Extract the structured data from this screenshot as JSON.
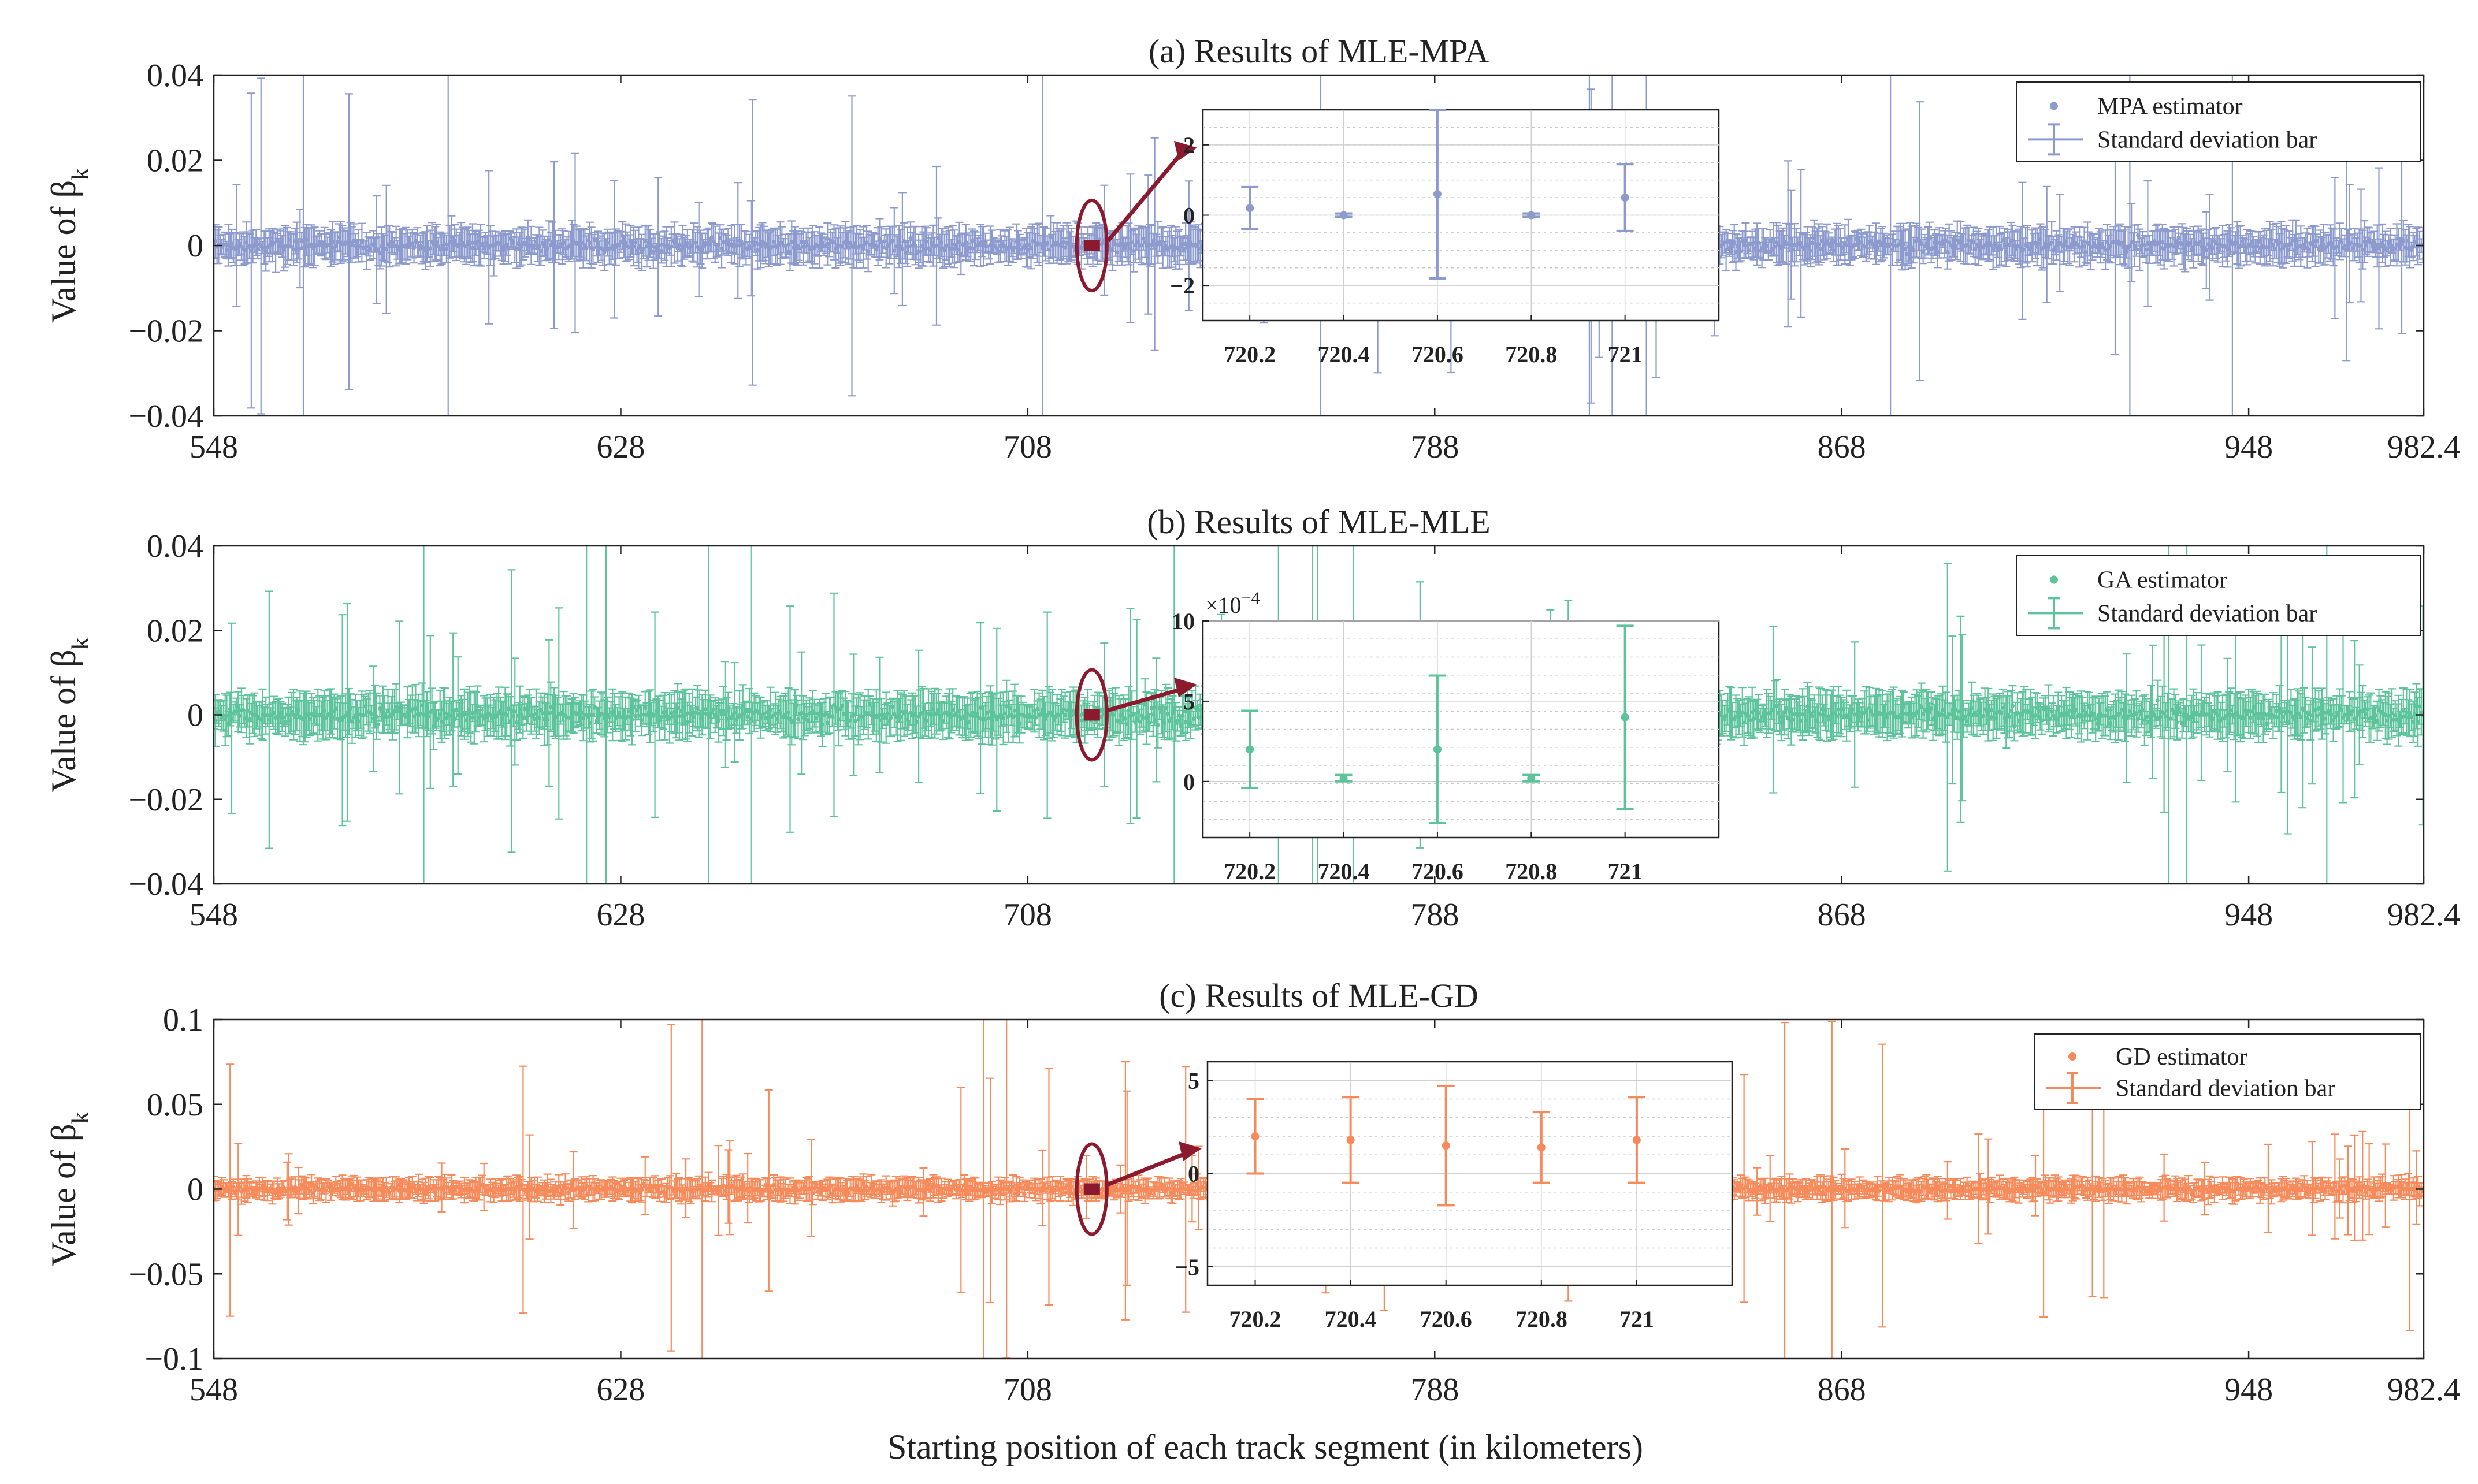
{
  "figure": {
    "xlabel": "Starting position of each track segment (in kilometers)"
  },
  "chart_data": [
    {
      "type": "scatter",
      "title": "(a) Results of MLE-MPA",
      "ylabel": "Value of β",
      "ylabel_subscript": "k",
      "xlim": [
        548,
        982.4
      ],
      "ylim": [
        -0.04,
        0.04
      ],
      "x_ticks": [
        "548",
        "628",
        "708",
        "788",
        "868",
        "948",
        "982.4"
      ],
      "y_ticks": [
        "-0.04",
        "-0.02",
        "0",
        "0.02",
        "0.04"
      ],
      "color": "#8C9ACD",
      "legend_position": "top-right",
      "series": [
        {
          "name": "MPA estimator",
          "kind": "points"
        },
        {
          "name": "Standard  deviation bar",
          "kind": "errorbar"
        }
      ],
      "dense_series": {
        "x_range": [
          548,
          982.4
        ],
        "step_km": 0.2,
        "center": 0,
        "typical_std": 0.004,
        "max_std": 0.045
      },
      "highlight_x": 720.6,
      "inset": {
        "xlim": [
          720.1,
          721.2
        ],
        "ylim": [
          -3,
          3
        ],
        "x_ticks": [
          "720.2",
          "720.4",
          "720.6",
          "720.8",
          "721"
        ],
        "y_ticks": [
          "-2",
          "0",
          "2"
        ],
        "exponent_label": "",
        "points": [
          {
            "x": 720.2,
            "y": 0.2,
            "err": 0.6
          },
          {
            "x": 720.4,
            "y": 0.0,
            "err": 0.05
          },
          {
            "x": 720.6,
            "y": 0.6,
            "err": 2.4
          },
          {
            "x": 720.8,
            "y": 0.0,
            "err": 0.05
          },
          {
            "x": 721.0,
            "y": 0.5,
            "err": 0.95
          }
        ]
      }
    },
    {
      "type": "scatter",
      "title": "(b) Results of MLE-MLE",
      "ylabel": "Value of β",
      "ylabel_subscript": "k",
      "xlim": [
        548,
        982.4
      ],
      "ylim": [
        -0.04,
        0.04
      ],
      "x_ticks": [
        "548",
        "628",
        "708",
        "788",
        "868",
        "948",
        "982.4"
      ],
      "y_ticks": [
        "-0.04",
        "-0.02",
        "0",
        "0.02",
        "0.04"
      ],
      "color": "#5CC39A",
      "legend_position": "top-right",
      "series": [
        {
          "name": "GA estimator",
          "kind": "points"
        },
        {
          "name": "Standard  deviation bar",
          "kind": "errorbar"
        }
      ],
      "dense_series": {
        "x_range": [
          548,
          982.4
        ],
        "step_km": 0.2,
        "center": 0,
        "typical_std": 0.005,
        "max_std": 0.05
      },
      "highlight_x": 720.6,
      "inset": {
        "xlim": [
          720.1,
          721.2
        ],
        "ylim": [
          -3.5,
          10
        ],
        "x_ticks": [
          "720.2",
          "720.4",
          "720.6",
          "720.8",
          "721"
        ],
        "y_ticks": [
          "0",
          "5",
          "10"
        ],
        "exponent_label": "×10",
        "exponent_power": "-4",
        "points": [
          {
            "x": 720.2,
            "y": 2.0,
            "err": 2.4
          },
          {
            "x": 720.4,
            "y": 0.2,
            "err": 0.2
          },
          {
            "x": 720.6,
            "y": 2.0,
            "err": 4.6
          },
          {
            "x": 720.8,
            "y": 0.2,
            "err": 0.2
          },
          {
            "x": 721.0,
            "y": 4.0,
            "err": 5.7
          }
        ]
      }
    },
    {
      "type": "scatter",
      "title": "(c) Results of MLE-GD",
      "ylabel": "Value of β",
      "ylabel_subscript": "k",
      "xlim": [
        548,
        982.4
      ],
      "ylim": [
        -0.1,
        0.1
      ],
      "x_ticks": [
        "548",
        "628",
        "708",
        "788",
        "868",
        "948",
        "982.4"
      ],
      "y_ticks": [
        "-0.1",
        "-0.05",
        "0",
        "0.05",
        "0.1"
      ],
      "color": "#F68A5A",
      "legend_position": "top-right",
      "series": [
        {
          "name": "GD estimator",
          "kind": "points"
        },
        {
          "name": "Standard  deviation bar",
          "kind": "errorbar"
        }
      ],
      "dense_series": {
        "x_range": [
          548,
          982.4
        ],
        "step_km": 0.2,
        "center": 0,
        "typical_std": 0.006,
        "max_std": 0.1
      },
      "highlight_x": 720.6,
      "inset": {
        "xlim": [
          720.1,
          721.2
        ],
        "ylim": [
          -6,
          6
        ],
        "x_ticks": [
          "720.2",
          "720.4",
          "720.6",
          "720.8",
          "721"
        ],
        "y_ticks": [
          "-5",
          "0",
          "5"
        ],
        "exponent_label": "",
        "points": [
          {
            "x": 720.2,
            "y": 2.0,
            "err": 2.0
          },
          {
            "x": 720.4,
            "y": 1.8,
            "err": 2.3
          },
          {
            "x": 720.6,
            "y": 1.5,
            "err": 3.2
          },
          {
            "x": 720.8,
            "y": 1.4,
            "err": 1.9
          },
          {
            "x": 721.0,
            "y": 1.8,
            "err": 2.3
          }
        ]
      }
    }
  ]
}
